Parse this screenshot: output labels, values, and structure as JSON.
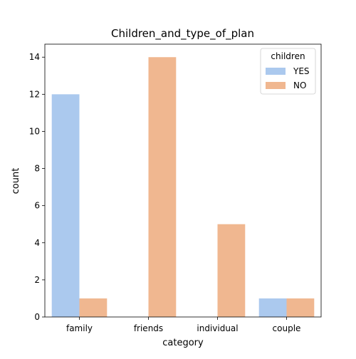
{
  "chart_data": {
    "type": "bar",
    "title": "Children_and_type_of_plan",
    "xlabel": "category",
    "ylabel": "count",
    "categories": [
      "family",
      "friends",
      "individual",
      "couple"
    ],
    "series": [
      {
        "name": "YES",
        "values": [
          12,
          0,
          0,
          1
        ],
        "color": "#abc9ee"
      },
      {
        "name": "NO",
        "values": [
          1,
          14,
          5,
          1
        ],
        "color": "#f0b790"
      }
    ],
    "ylim": [
      0,
      14.7
    ],
    "yticks": [
      0,
      2,
      4,
      6,
      8,
      10,
      12,
      14
    ],
    "grid": false,
    "legend": {
      "title": "children",
      "placement": "top-right"
    }
  }
}
